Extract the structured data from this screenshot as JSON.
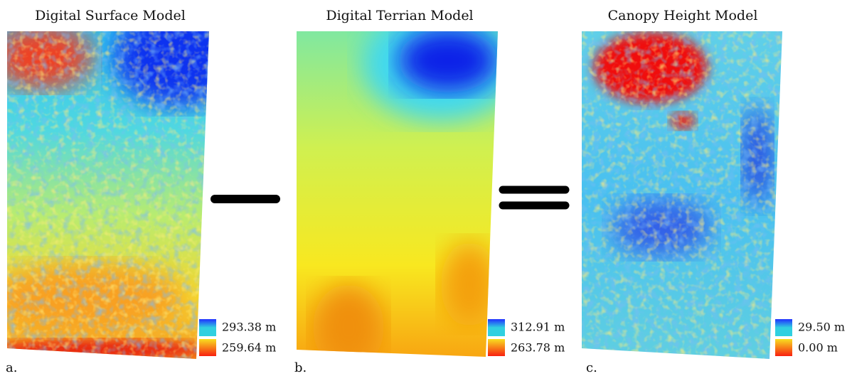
{
  "panels": [
    {
      "title": "Digital Surface Model",
      "label": "a.",
      "legend_max": "293.38 m",
      "legend_min": "259.64 m"
    },
    {
      "title": "Digital Terrian Model",
      "label": "b.",
      "legend_max": "312.91 m",
      "legend_min": "263.78 m"
    },
    {
      "title": "Canopy Height Model",
      "label": "c.",
      "legend_max": "29.50 m",
      "legend_min": "0.00 m"
    }
  ]
}
